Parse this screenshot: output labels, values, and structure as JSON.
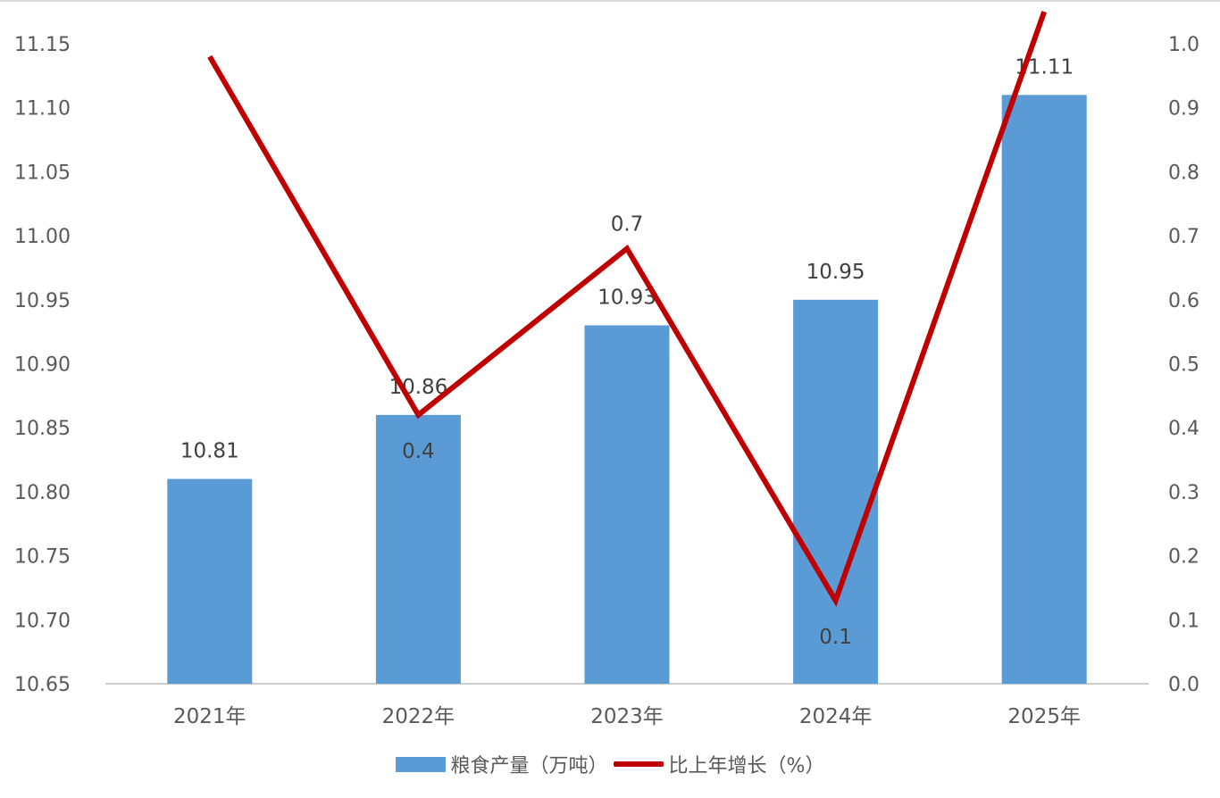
{
  "chart_data": {
    "type": "bar",
    "categories": [
      "2021年",
      "2022年",
      "2023年",
      "2024年",
      "2025年"
    ],
    "series": [
      {
        "name": "粮食产量（万吨）",
        "type": "bar",
        "axis": "left",
        "color": "#5b9bd5",
        "values": [
          10.81,
          10.86,
          10.93,
          10.95,
          11.11
        ],
        "labels": [
          "10.81",
          "10.86",
          "10.93",
          "10.95",
          "11.11"
        ]
      },
      {
        "name": "比上年增长（%）",
        "type": "line",
        "axis": "right",
        "color": "#c00000",
        "values": [
          0.98,
          0.42,
          0.68,
          0.13,
          1.05
        ],
        "labels": [
          "",
          "0.4",
          "0.7",
          "0.1",
          ""
        ]
      }
    ],
    "y_left": {
      "min": 10.65,
      "max": 11.15,
      "ticks": [
        "10.65",
        "10.70",
        "10.75",
        "10.80",
        "10.85",
        "10.90",
        "10.95",
        "11.00",
        "11.05",
        "11.10",
        "11.15"
      ]
    },
    "y_right": {
      "min": 0.0,
      "max": 1.0,
      "ticks": [
        "0.0",
        "0.1",
        "0.2",
        "0.3",
        "0.4",
        "0.5",
        "0.6",
        "0.7",
        "0.8",
        "0.9",
        "1.0"
      ]
    },
    "grid": false,
    "legend_position": "bottom"
  }
}
